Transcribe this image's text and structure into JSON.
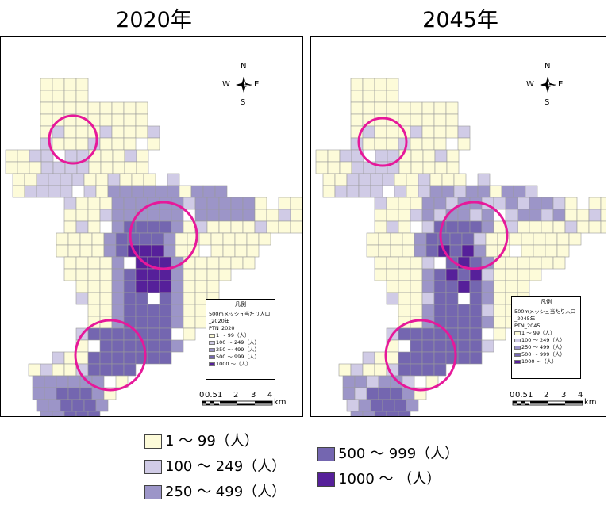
{
  "maps": [
    {
      "title": "2020年",
      "inset": {
        "title": "凡例",
        "layer": "500mメッシュ当たり人口_2020年",
        "field": "PTN_2020",
        "classes": [
          "1 ～ 99（人）",
          "100 ～ 249（人）",
          "250 ～ 499（人）",
          "500 ～ 999（人）",
          "1000 ～（人）"
        ]
      },
      "compass": {
        "n": "N",
        "s": "S",
        "e": "E",
        "w": "W"
      },
      "scale": {
        "ticks": [
          "0",
          "0.5",
          "1",
          "2",
          "3",
          "4"
        ],
        "unit": "km"
      }
    },
    {
      "title": "2045年",
      "inset": {
        "title": "凡例",
        "layer": "500mメッシュ当たり人口_2045年",
        "field": "PTN_2045",
        "classes": [
          "1 ～ 99（人）",
          "100 ～ 249（人）",
          "250 ～ 499（人）",
          "500 ～ 999（人）",
          "1000 ～（人）"
        ]
      },
      "compass": {
        "n": "N",
        "s": "S",
        "e": "E",
        "w": "W"
      },
      "scale": {
        "ticks": [
          "0",
          "0.5",
          "1",
          "2",
          "3",
          "4"
        ],
        "unit": "km"
      }
    }
  ],
  "legend": [
    {
      "label": "1 ～ 99（人）",
      "color": "#fdfbd9"
    },
    {
      "label": "100 ～ 249（人）",
      "color": "#d0cbe6"
    },
    {
      "label": "250 ～ 499（人）",
      "color": "#9c95c8"
    },
    {
      "label": "500 ～ 999（人）",
      "color": "#7466b0"
    },
    {
      "label": "1000 ～ （人）",
      "color": "#56209a"
    }
  ],
  "colors": {
    "highlight_ring": "#e6199a"
  }
}
